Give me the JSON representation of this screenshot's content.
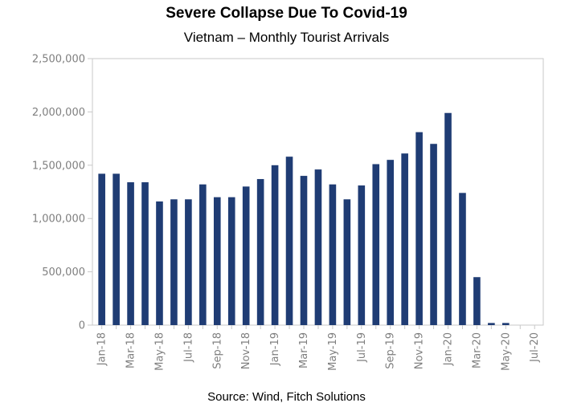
{
  "chart_data": {
    "type": "bar",
    "title": "Severe Collapse Due To Covid-19",
    "subtitle": "Vietnam – Monthly Tourist Arrivals",
    "source": "Source: Wind, Fitch Solutions",
    "categories": [
      "Jan-18",
      "Feb-18",
      "Mar-18",
      "Apr-18",
      "May-18",
      "Jun-18",
      "Jul-18",
      "Aug-18",
      "Sep-18",
      "Oct-18",
      "Nov-18",
      "Dec-18",
      "Jan-19",
      "Feb-19",
      "Mar-19",
      "Apr-19",
      "May-19",
      "Jun-19",
      "Jul-19",
      "Aug-19",
      "Sep-19",
      "Oct-19",
      "Nov-19",
      "Dec-19",
      "Jan-20",
      "Feb-20",
      "Mar-20",
      "Apr-20",
      "May-20",
      "Jun-20",
      "Jul-20"
    ],
    "x_tick_labels": [
      "Jan-18",
      "Mar-18",
      "May-18",
      "Jul-18",
      "Sep-18",
      "Nov-18",
      "Jan-19",
      "Mar-19",
      "May-19",
      "Jul-19",
      "Sep-19",
      "Nov-19",
      "Jan-20",
      "Mar-20",
      "May-20",
      "Jul-20"
    ],
    "values": [
      1420000,
      1420000,
      1340000,
      1340000,
      1160000,
      1180000,
      1180000,
      1320000,
      1200000,
      1200000,
      1300000,
      1370000,
      1500000,
      1580000,
      1400000,
      1460000,
      1320000,
      1180000,
      1310000,
      1510000,
      1550000,
      1610000,
      1810000,
      1700000,
      1990000,
      1240000,
      450000,
      20000,
      20000,
      0,
      0
    ],
    "ylim": [
      0,
      2500000
    ],
    "y_ticks": [
      "2,500,000",
      "2,000,000",
      "1,500,000",
      "1,000,000",
      "500,000",
      "0"
    ],
    "y_tick_values": [
      2500000,
      2000000,
      1500000,
      1000000,
      500000,
      0
    ],
    "bar_color": "#1f3c74",
    "grid": false
  }
}
